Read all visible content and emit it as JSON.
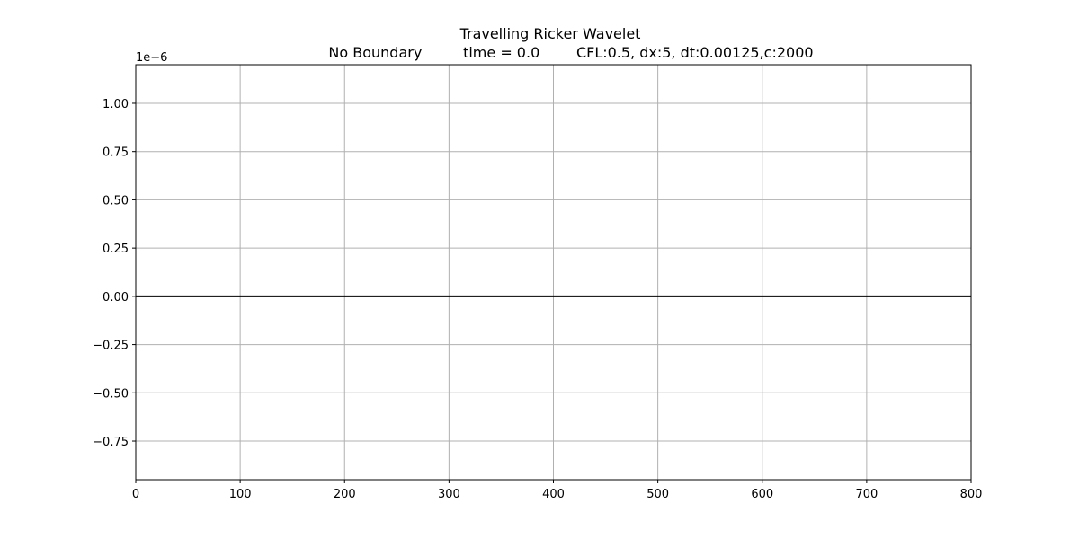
{
  "chart_data": {
    "type": "line",
    "title": "Travelling Ricker Wavelet",
    "subtitle": "No Boundary         time = 0.0        CFL:0.5, dx:5, dt:0.00125,c:2000",
    "xlabel": "",
    "ylabel": "",
    "y_offset_label": "1e−6",
    "xlim": [
      0,
      800
    ],
    "ylim": [
      -0.95,
      1.2
    ],
    "y_scale_factor": 1e-06,
    "grid": true,
    "x_ticks": [
      0,
      100,
      200,
      300,
      400,
      500,
      600,
      700,
      800
    ],
    "x_tick_labels": [
      "0",
      "100",
      "200",
      "300",
      "400",
      "500",
      "600",
      "700",
      "800"
    ],
    "y_ticks": [
      1.0,
      0.75,
      0.5,
      0.25,
      0.0,
      -0.25,
      -0.5,
      -0.75
    ],
    "y_tick_labels": [
      "1.00",
      "0.75",
      "0.50",
      "0.25",
      "0.00",
      "−0.25",
      "−0.50",
      "−0.75"
    ],
    "series": [
      {
        "x": [
          0,
          800
        ],
        "values": [
          0,
          0
        ]
      }
    ],
    "colors": {
      "line": "#000000",
      "grid": "#b0b0b0",
      "axes": "#000000"
    }
  }
}
